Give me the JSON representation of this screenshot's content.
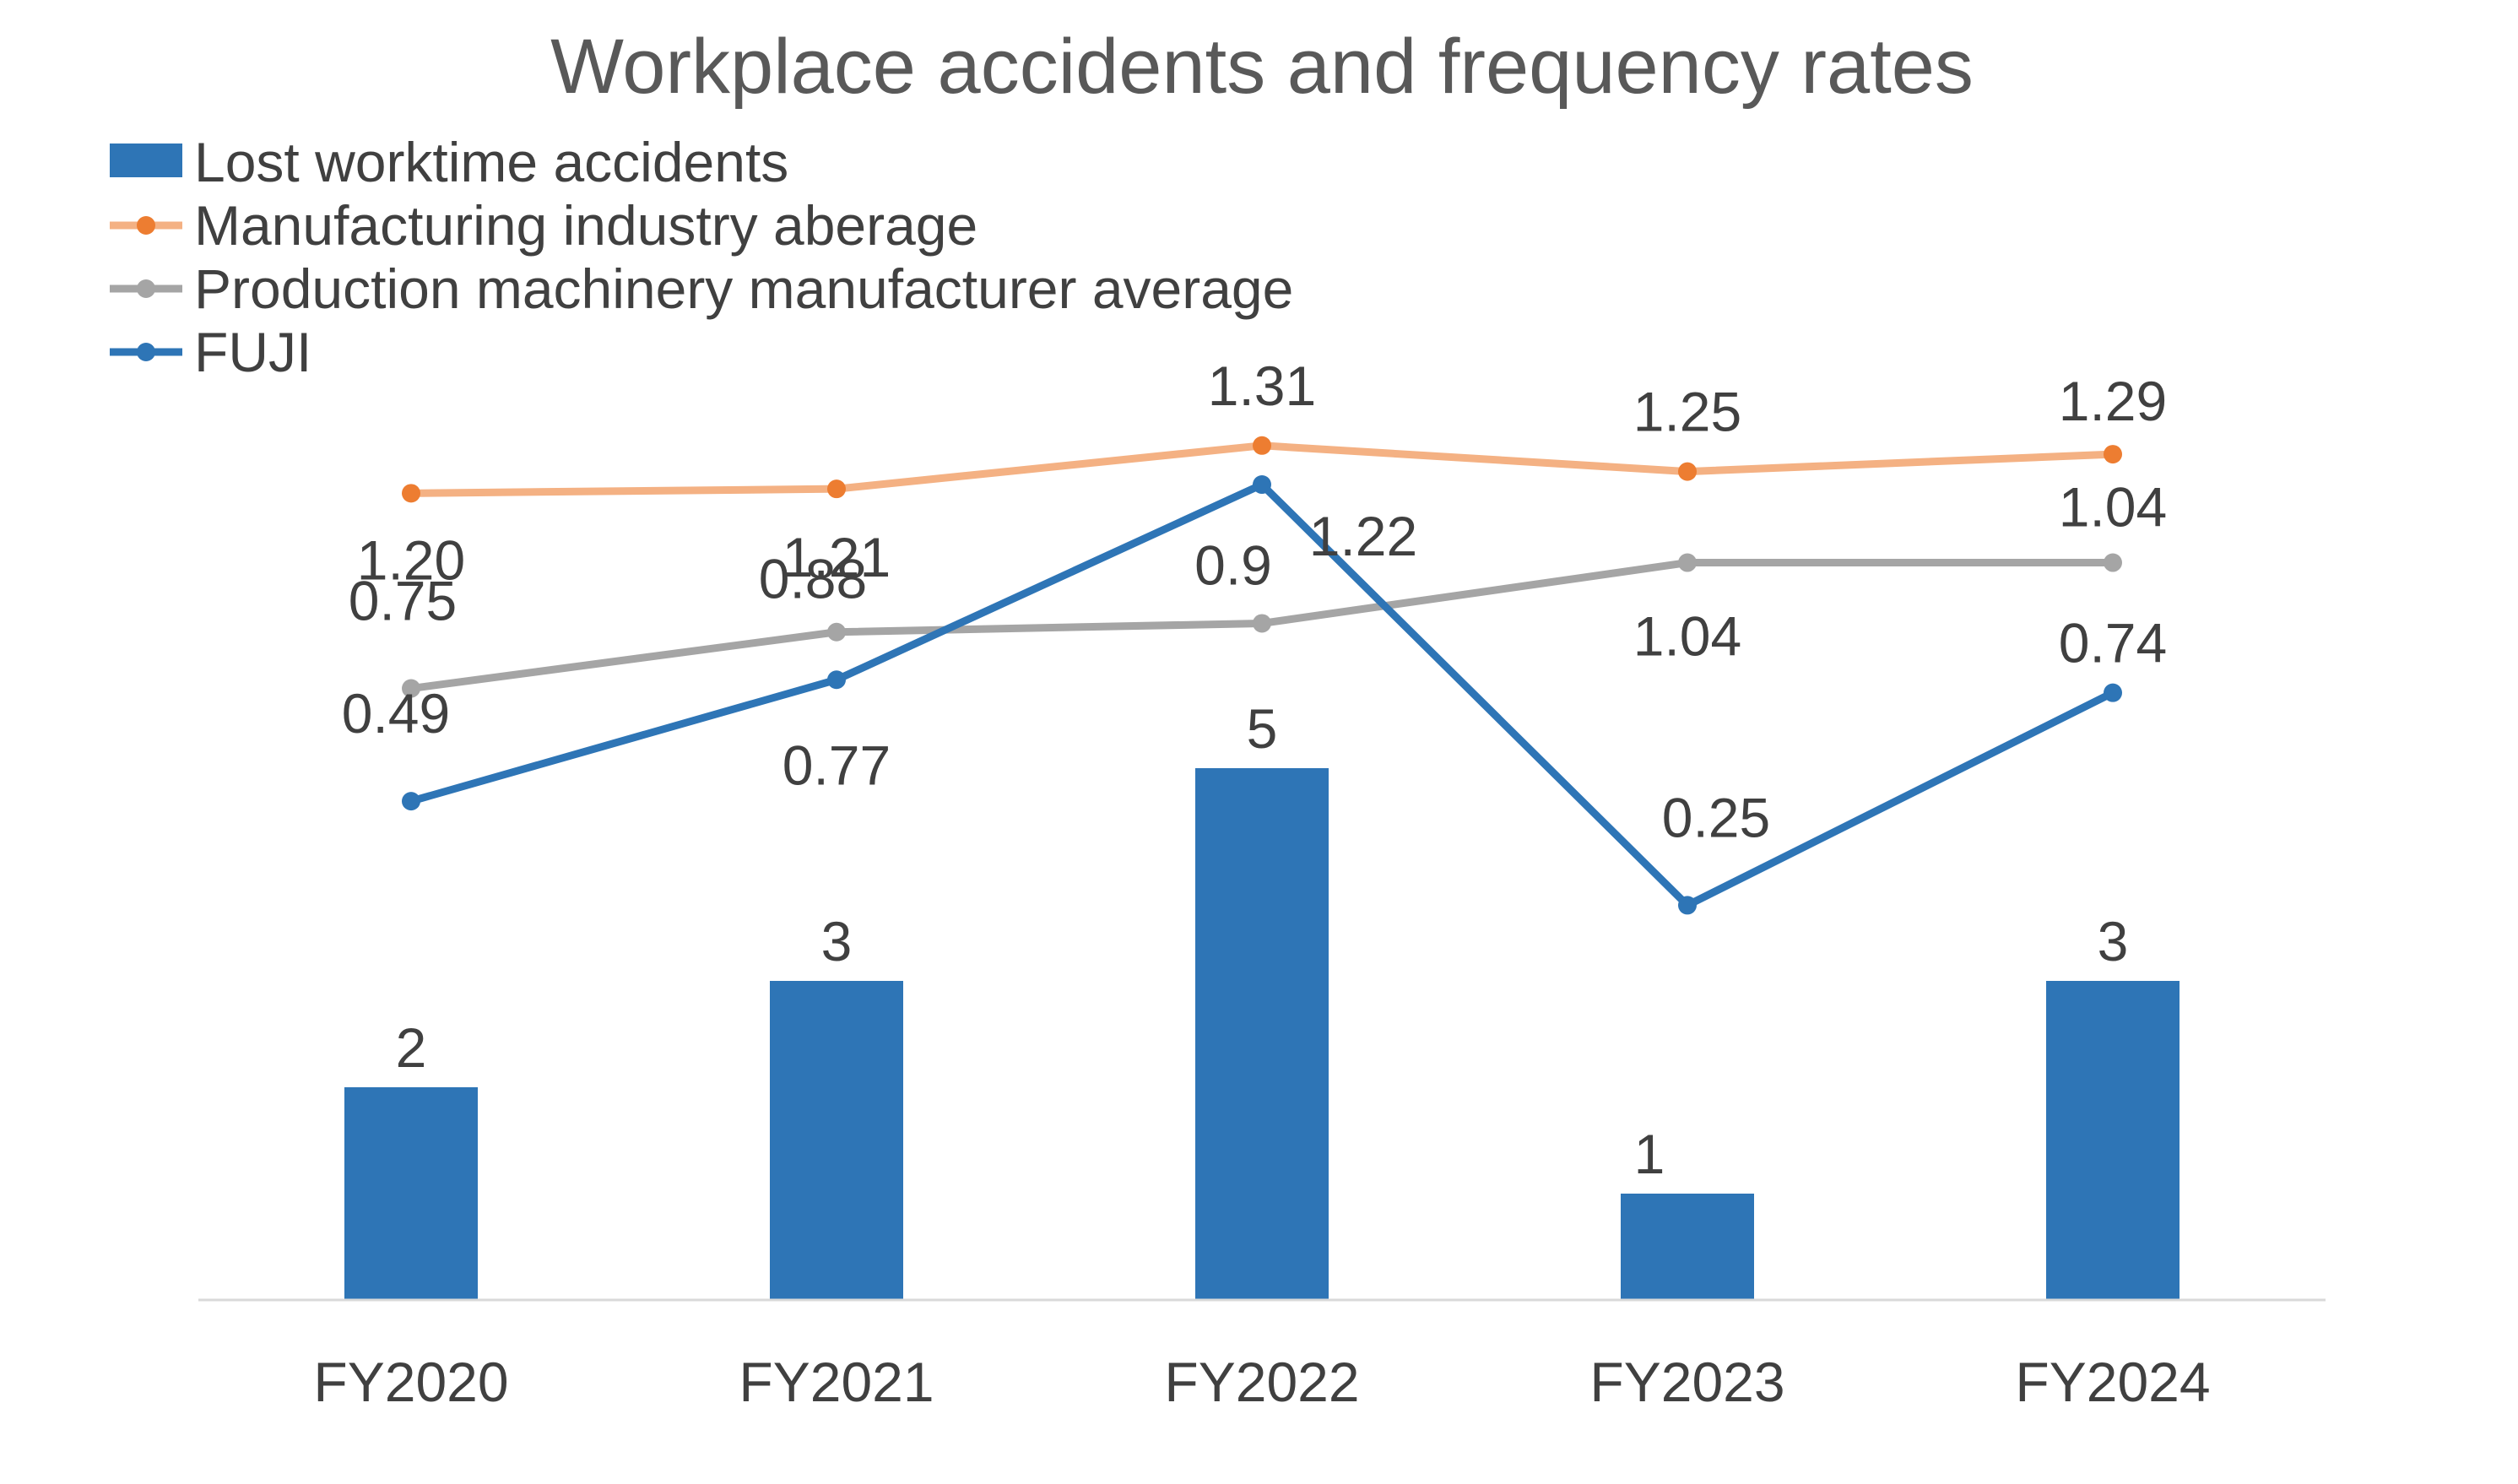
{
  "chart_data": {
    "type": "bar",
    "title": "Workplace accidents and frequency rates",
    "categories": [
      "FY2020",
      "FY2021",
      "FY2022",
      "FY2023",
      "FY2024"
    ],
    "bars": {
      "name": "Lost worktime accidents",
      "values": [
        2,
        3,
        5,
        1,
        3
      ],
      "labels": [
        "2",
        "3",
        "5",
        "1",
        "3"
      ],
      "color": "#2e75b6"
    },
    "lines": [
      {
        "name": "Manufacturing industry aberage",
        "values": [
          1.2,
          1.21,
          1.31,
          1.25,
          1.29
        ],
        "labels": [
          "1.20",
          "1.21",
          "1.31",
          "1.25",
          "1.29"
        ],
        "color": "#f4b183",
        "marker_color": "#ed7d31"
      },
      {
        "name": "Production machinery manufacturer average",
        "values": [
          0.75,
          0.88,
          0.9,
          1.04,
          1.04
        ],
        "labels": [
          "0.75",
          "0.88",
          "0.9",
          "1.04",
          "1.04"
        ],
        "color": "#a5a5a5",
        "marker_color": "#a5a5a5"
      },
      {
        "name": "FUJI",
        "values": [
          0.49,
          0.77,
          1.22,
          0.25,
          0.74
        ],
        "labels": [
          "0.49",
          "0.77",
          "1.22",
          "0.25",
          "0.74"
        ],
        "color": "#2e75b6",
        "marker_color": "#2e75b6"
      }
    ],
    "bar_axis_range": [
      0,
      10
    ],
    "line_axis_range": [
      -0.66,
      1.73
    ],
    "legend_position": "top-left",
    "grid": false
  }
}
